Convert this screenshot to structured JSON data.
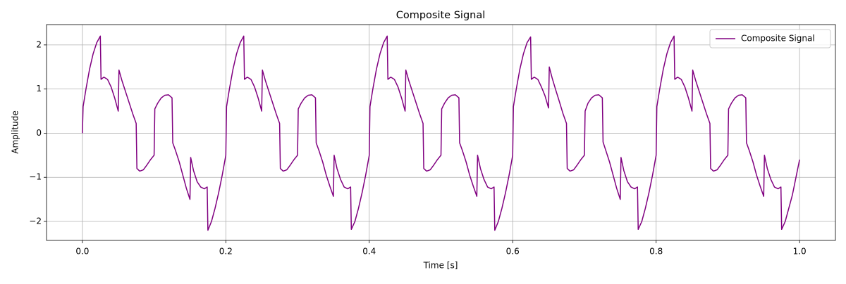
{
  "chart_data": {
    "type": "line",
    "title": "Composite Signal",
    "x_label": "Time [s]",
    "y_label": "Amplitude",
    "xlim": [
      -0.05,
      1.05
    ],
    "ylim": [
      -2.43,
      2.46
    ],
    "xticks": [
      {
        "value": 0,
        "label": "0.0"
      },
      {
        "value": 0.2,
        "label": "0.2"
      },
      {
        "value": 0.4,
        "label": "0.4"
      },
      {
        "value": 0.6,
        "label": "0.6"
      },
      {
        "value": 0.8,
        "label": "0.8"
      },
      {
        "value": 1,
        "label": "1.0"
      }
    ],
    "yticks": [
      {
        "value": -2,
        "label": "−2"
      },
      {
        "value": -1,
        "label": "−1"
      },
      0,
      1,
      2
    ],
    "grid": true,
    "legend": "upper right",
    "x": [
      0,
      0.001,
      0.005,
      0.01,
      0.015,
      0.02,
      0.025,
      0.026,
      0.03,
      0.035,
      0.04,
      0.045,
      0.05,
      0.051,
      0.055,
      0.06,
      0.065,
      0.07,
      0.075,
      0.076,
      0.08,
      0.085,
      0.09,
      0.095,
      0.1,
      0.101,
      0.105,
      0.11,
      0.115,
      0.12,
      0.125,
      0.126,
      0.13,
      0.135,
      0.14,
      0.145,
      0.15,
      0.151,
      0.155,
      0.16,
      0.165,
      0.17,
      0.174,
      0.175,
      0.18,
      0.185,
      0.19,
      0.195,
      0.2,
      0.201,
      0.205,
      0.21,
      0.215,
      0.22,
      0.225,
      0.226,
      0.23,
      0.235,
      0.24,
      0.245,
      0.25,
      0.251,
      0.255,
      0.26,
      0.265,
      0.27,
      0.275,
      0.276,
      0.28,
      0.285,
      0.29,
      0.295,
      0.3,
      0.301,
      0.305,
      0.31,
      0.315,
      0.32,
      0.325,
      0.326,
      0.33,
      0.335,
      0.34,
      0.345,
      0.35,
      0.351,
      0.355,
      0.36,
      0.365,
      0.37,
      0.374,
      0.375,
      0.38,
      0.385,
      0.39,
      0.395,
      0.4,
      0.401,
      0.405,
      0.41,
      0.415,
      0.42,
      0.425,
      0.426,
      0.43,
      0.435,
      0.44,
      0.445,
      0.45,
      0.451,
      0.455,
      0.46,
      0.465,
      0.47,
      0.475,
      0.476,
      0.48,
      0.485,
      0.49,
      0.495,
      0.5,
      0.501,
      0.505,
      0.51,
      0.515,
      0.52,
      0.525,
      0.526,
      0.53,
      0.535,
      0.54,
      0.545,
      0.55,
      0.551,
      0.555,
      0.56,
      0.565,
      0.57,
      0.574,
      0.575,
      0.58,
      0.585,
      0.59,
      0.595,
      0.6,
      0.601,
      0.605,
      0.61,
      0.615,
      0.62,
      0.625,
      0.626,
      0.63,
      0.635,
      0.64,
      0.645,
      0.65,
      0.651,
      0.655,
      0.66,
      0.665,
      0.67,
      0.675,
      0.676,
      0.68,
      0.685,
      0.69,
      0.695,
      0.7,
      0.701,
      0.705,
      0.71,
      0.715,
      0.72,
      0.725,
      0.726,
      0.73,
      0.735,
      0.74,
      0.745,
      0.75,
      0.751,
      0.755,
      0.76,
      0.765,
      0.77,
      0.774,
      0.775,
      0.78,
      0.785,
      0.79,
      0.795,
      0.8,
      0.801,
      0.805,
      0.81,
      0.815,
      0.82,
      0.825,
      0.826,
      0.83,
      0.835,
      0.84,
      0.845,
      0.85,
      0.851,
      0.855,
      0.86,
      0.865,
      0.87,
      0.875,
      0.876,
      0.88,
      0.885,
      0.89,
      0.895,
      0.9,
      0.901,
      0.905,
      0.91,
      0.915,
      0.92,
      0.925,
      0.926,
      0.93,
      0.935,
      0.94,
      0.945,
      0.95,
      0.951,
      0.955,
      0.96,
      0.965,
      0.97,
      0.974,
      0.975,
      0.98,
      0.985,
      0.99,
      0.995,
      1.0
    ],
    "series": [
      {
        "name": "Composite Signal",
        "color": "#800080",
        "values": [
          0,
          0.6,
          1.0,
          1.45,
          1.8,
          2.05,
          2.2,
          1.22,
          1.27,
          1.22,
          1.05,
          0.8,
          0.5,
          1.43,
          1.2,
          0.95,
          0.7,
          0.45,
          0.22,
          -0.8,
          -0.86,
          -0.83,
          -0.72,
          -0.6,
          -0.5,
          0.55,
          0.68,
          0.8,
          0.86,
          0.87,
          0.8,
          -0.22,
          -0.4,
          -0.65,
          -0.95,
          -1.25,
          -1.5,
          -0.55,
          -0.85,
          -1.1,
          -1.22,
          -1.26,
          -1.22,
          -2.2,
          -2.0,
          -1.7,
          -1.35,
          -0.95,
          -0.5,
          0.6,
          1.0,
          1.45,
          1.8,
          2.05,
          2.2,
          1.22,
          1.27,
          1.22,
          1.05,
          0.8,
          0.5,
          1.43,
          1.2,
          0.95,
          0.7,
          0.45,
          0.22,
          -0.8,
          -0.86,
          -0.83,
          -0.72,
          -0.6,
          -0.5,
          0.55,
          0.68,
          0.8,
          0.86,
          0.87,
          0.8,
          -0.22,
          -0.4,
          -0.65,
          -0.95,
          -1.2,
          -1.43,
          -0.5,
          -0.8,
          -1.05,
          -1.22,
          -1.26,
          -1.22,
          -2.18,
          -2.0,
          -1.7,
          -1.35,
          -0.95,
          -0.5,
          0.6,
          1.0,
          1.45,
          1.8,
          2.05,
          2.2,
          1.22,
          1.27,
          1.22,
          1.05,
          0.8,
          0.5,
          1.43,
          1.2,
          0.95,
          0.7,
          0.45,
          0.22,
          -0.8,
          -0.86,
          -0.83,
          -0.72,
          -0.6,
          -0.5,
          0.55,
          0.68,
          0.8,
          0.86,
          0.87,
          0.8,
          -0.22,
          -0.4,
          -0.65,
          -0.95,
          -1.2,
          -1.43,
          -0.5,
          -0.8,
          -1.05,
          -1.22,
          -1.26,
          -1.22,
          -2.2,
          -2.0,
          -1.7,
          -1.35,
          -0.95,
          -0.5,
          0.6,
          1.0,
          1.45,
          1.8,
          2.05,
          2.18,
          1.22,
          1.27,
          1.22,
          1.05,
          0.85,
          0.57,
          1.5,
          1.25,
          0.98,
          0.72,
          0.45,
          0.22,
          -0.8,
          -0.86,
          -0.83,
          -0.72,
          -0.6,
          -0.5,
          0.5,
          0.68,
          0.8,
          0.86,
          0.87,
          0.8,
          -0.2,
          -0.4,
          -0.65,
          -0.95,
          -1.25,
          -1.5,
          -0.55,
          -0.85,
          -1.1,
          -1.22,
          -1.26,
          -1.22,
          -2.18,
          -2.0,
          -1.7,
          -1.35,
          -0.95,
          -0.5,
          0.6,
          1.0,
          1.45,
          1.8,
          2.05,
          2.2,
          1.22,
          1.27,
          1.22,
          1.05,
          0.8,
          0.5,
          1.43,
          1.2,
          0.95,
          0.7,
          0.45,
          0.22,
          -0.8,
          -0.86,
          -0.83,
          -0.72,
          -0.6,
          -0.5,
          0.55,
          0.68,
          0.8,
          0.86,
          0.87,
          0.8,
          -0.22,
          -0.4,
          -0.65,
          -0.95,
          -1.2,
          -1.43,
          -0.5,
          -0.8,
          -1.05,
          -1.22,
          -1.26,
          -1.22,
          -2.18,
          -2.0,
          -1.7,
          -1.4,
          -1.0,
          -0.6
        ]
      }
    ]
  }
}
